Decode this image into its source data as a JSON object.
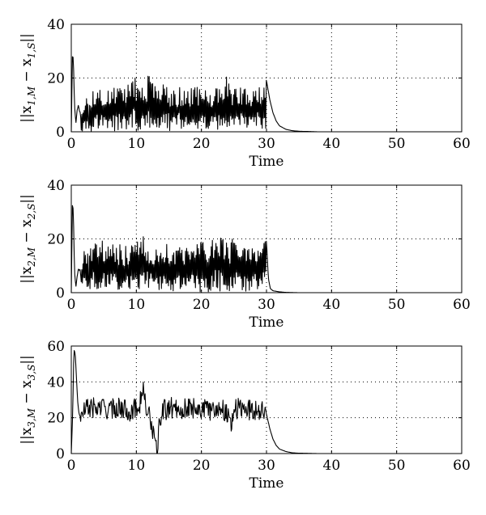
{
  "chart_data": [
    {
      "type": "line",
      "xlabel": "Time",
      "ylabel": {
        "prefix": "||x",
        "sub1": "1,M",
        "mid": " − x",
        "sub2": "1,S",
        "suffix": "||"
      },
      "xlim": [
        0,
        60
      ],
      "ylim": [
        0,
        40
      ],
      "xticks": [
        "0",
        "10",
        "20",
        "30",
        "40",
        "50",
        "60"
      ],
      "yticks": [
        "0",
        "20",
        "40"
      ],
      "grid": true,
      "series": [
        {
          "x": [
            0,
            0.2,
            0.35,
            0.5,
            0.7,
            0.9,
            1.1,
            1.3,
            2,
            3,
            4,
            5,
            6,
            7,
            8,
            9,
            9.6,
            10,
            11,
            12,
            13,
            14,
            15,
            16,
            17,
            18,
            19,
            20,
            21,
            22,
            23,
            23.8,
            24.5,
            25,
            26,
            27,
            28,
            29,
            29.8,
            30,
            30.5,
            31,
            31.5,
            32,
            33,
            34,
            35,
            38,
            40,
            43
          ],
          "y": [
            0,
            31,
            24,
            10,
            3,
            8,
            10,
            7,
            13,
            16,
            17,
            17,
            16,
            17,
            16,
            19,
            23,
            19,
            16,
            22,
            17,
            18,
            17,
            16,
            17,
            16,
            17,
            16,
            16,
            16,
            17,
            21,
            16,
            17,
            17,
            16,
            17,
            18,
            20,
            19,
            12,
            7,
            4,
            2.2,
            0.9,
            0.4,
            0.2,
            0,
            0,
            0
          ]
        }
      ]
    },
    {
      "type": "line",
      "xlabel": "Time",
      "ylabel": {
        "prefix": "||x",
        "sub1": "2,M",
        "mid": " − x",
        "sub2": "2,S",
        "suffix": "||"
      },
      "xlim": [
        0,
        60
      ],
      "ylim": [
        0,
        40
      ],
      "xticks": [
        "0",
        "10",
        "20",
        "30",
        "40",
        "50",
        "60"
      ],
      "yticks": [
        "0",
        "20",
        "40"
      ],
      "grid": true,
      "series": [
        {
          "x": [
            0,
            0.2,
            0.35,
            0.5,
            0.7,
            0.9,
            1.1,
            1.3,
            2,
            3,
            4,
            5,
            6,
            7,
            8,
            9,
            10,
            10.5,
            11,
            12,
            13,
            14,
            15,
            16,
            17,
            18,
            19,
            20,
            21,
            22,
            22.5,
            23,
            24,
            25,
            26,
            27,
            28,
            29,
            29.8,
            30,
            30.3,
            30.6,
            31,
            32,
            33,
            35,
            40,
            43
          ],
          "y": [
            0,
            36,
            26,
            8,
            2,
            6,
            9,
            8,
            16,
            19,
            18,
            20,
            18,
            19,
            17,
            18,
            19,
            22,
            21,
            19,
            19,
            17,
            19,
            19,
            18,
            20,
            18,
            19,
            19,
            20,
            23,
            22,
            18,
            21,
            19,
            18,
            19,
            20,
            20,
            19,
            5,
            1.5,
            0.7,
            0.3,
            0.1,
            0,
            0,
            0
          ]
        }
      ]
    },
    {
      "type": "line",
      "xlabel": "Time",
      "ylabel": {
        "prefix": "||x",
        "sub1": "3,M",
        "mid": " − x",
        "sub2": "3,S",
        "suffix": "||"
      },
      "xlim": [
        0,
        60
      ],
      "ylim": [
        0,
        60
      ],
      "xticks": [
        "0",
        "10",
        "20",
        "30",
        "40",
        "50",
        "60"
      ],
      "yticks": [
        "0",
        "20",
        "40",
        "60"
      ],
      "grid": true,
      "series": [
        {
          "x": [
            0,
            0.2,
            0.4,
            0.6,
            0.8,
            1.0,
            1.2,
            1.5,
            2,
            3,
            4,
            5,
            6,
            7,
            8,
            9,
            10,
            10.5,
            11,
            11.5,
            12,
            12.5,
            13,
            13.3,
            13.6,
            14,
            15,
            16,
            17,
            18,
            19,
            20,
            21,
            22,
            23,
            24,
            24.5,
            25,
            25.5,
            26,
            27,
            28,
            29,
            29.8,
            30,
            30.5,
            31,
            31.5,
            32,
            33,
            34,
            35,
            38,
            40,
            43
          ],
          "y": [
            0,
            20,
            58,
            56,
            42,
            28,
            22,
            20,
            24,
            26,
            25,
            26,
            24,
            26,
            25,
            24,
            25,
            28,
            36,
            26,
            20,
            14,
            1,
            5,
            18,
            24,
            25,
            26,
            25,
            25,
            26,
            25,
            24,
            25,
            26,
            22,
            16,
            25,
            25,
            25,
            25,
            24,
            25,
            24,
            22,
            14,
            8,
            4.5,
            2.5,
            1.1,
            0.4,
            0.2,
            0,
            0,
            0
          ]
        }
      ]
    }
  ]
}
